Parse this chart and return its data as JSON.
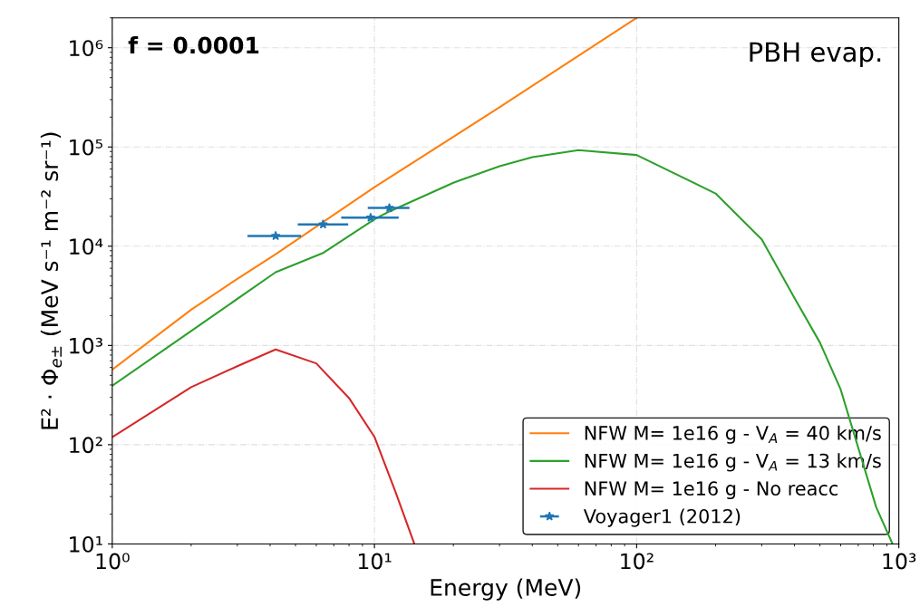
{
  "chart_data": {
    "type": "line",
    "xlabel": "Energy (MeV)",
    "ylabel": "E² · Φ$_{e±}$ (MeV s⁻¹ m⁻² sr⁻¹)",
    "log": "xy",
    "xlim": [
      1,
      1000
    ],
    "ylim": [
      10,
      2000000
    ],
    "xticks": [
      {
        "value": 1,
        "label": "10⁰"
      },
      {
        "value": 10,
        "label": "10¹"
      },
      {
        "value": 100,
        "label": "10²"
      },
      {
        "value": 1000,
        "label": "10³"
      }
    ],
    "yticks": [
      {
        "value": 10,
        "label": "10¹"
      },
      {
        "value": 100,
        "label": "10²"
      },
      {
        "value": 1000,
        "label": "10³"
      },
      {
        "value": 10000,
        "label": "10⁴"
      },
      {
        "value": 100000,
        "label": "10⁵"
      },
      {
        "value": 1000000,
        "label": "10⁶"
      }
    ],
    "grid": true,
    "legend": "bottom right",
    "annotations": [
      "f = 0.0001",
      "PBH evap."
    ],
    "series": [
      {
        "name": "NFW M= 1e16 g - V$_{A}$ = 40 km/s",
        "color": "#ff7f0e",
        "x": [
          1,
          2,
          3,
          4.2,
          10,
          30,
          100
        ],
        "values": [
          570,
          2290,
          4690,
          8300,
          39400,
          251000,
          2000000
        ]
      },
      {
        "name": "NFW M= 1e16 g - V$_{A}$ = 13 km/s",
        "color": "#2ca02c",
        "x": [
          1,
          2,
          4.2,
          6.4,
          10,
          11.4,
          20,
          30,
          40,
          60,
          100,
          200,
          300,
          400,
          500,
          600,
          819,
          946
        ],
        "values": [
          392,
          1400,
          5470,
          8600,
          18700,
          22400,
          43600,
          64000,
          79000,
          93000,
          83000,
          34000,
          11700,
          3010,
          1070,
          360,
          23.6,
          10
        ]
      },
      {
        "name": "NFW M= 1e16 g - No reacc",
        "color": "#d62728",
        "x": [
          1,
          2,
          3,
          4.2,
          6,
          8,
          10,
          12,
          14.2
        ],
        "values": [
          119,
          380,
          617,
          912,
          660,
          295,
          120,
          34,
          10
        ]
      },
      {
        "name": "Voyager1 (2012)",
        "type": "scatter",
        "marker": "star",
        "color": "#1f77b4",
        "x": [
          4.2,
          6.37,
          9.67,
          11.4
        ],
        "values": [
          12700,
          16600,
          19400,
          24300
        ],
        "xerrors": [
          [
            3.28,
            5.25
          ],
          [
            5.1,
            7.94
          ],
          [
            7.47,
            12.37
          ],
          [
            9.43,
            13.6
          ]
        ]
      }
    ]
  }
}
